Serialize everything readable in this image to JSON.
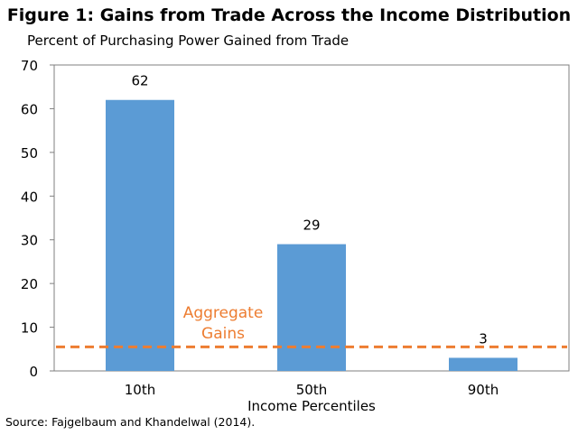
{
  "chart_data": {
    "type": "bar",
    "title": "Figure 1: Gains from Trade Across the Income Distribution",
    "ylabel": "Percent of Purchasing Power Gained from Trade",
    "xlabel": "Income Percentiles",
    "categories": [
      "10th",
      "50th",
      "90th"
    ],
    "values": [
      62,
      29,
      3
    ],
    "data_labels": [
      "62",
      "29",
      "3"
    ],
    "ylim": [
      0,
      70
    ],
    "yticks": [
      0,
      10,
      20,
      30,
      40,
      50,
      60,
      70
    ],
    "grid": false,
    "bar_color": "#5B9BD5",
    "reference_line": {
      "label_line1": "Aggregate",
      "label_line2": "Gains",
      "value": 5.5,
      "color": "#ED7D31",
      "style": "dashed"
    }
  },
  "source": "Source: Fajgelbaum and Khandelwal (2014)."
}
